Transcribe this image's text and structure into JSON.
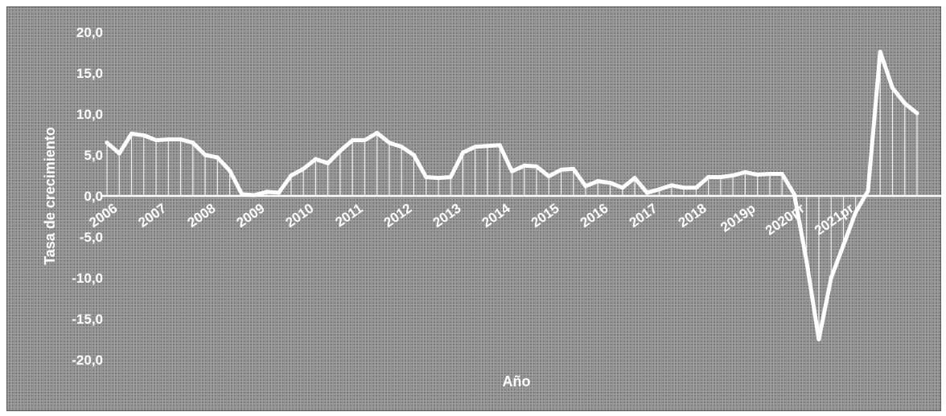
{
  "chart_data": {
    "type": "line",
    "title": "",
    "xlabel": "Año",
    "ylabel": "Tasa de crecimiento",
    "ylim": [
      -20,
      20
    ],
    "yticks": [
      "20,0",
      "15,0",
      "10,0",
      "5,0",
      "0,0",
      "-5,0",
      "-10,0",
      "-15,0",
      "-20,0"
    ],
    "ytick_values": [
      20,
      15,
      10,
      5,
      0,
      -5,
      -10,
      -15,
      -20
    ],
    "year_labels": [
      "2006",
      "2007",
      "2008",
      "2009",
      "2010",
      "2011",
      "2012",
      "2013",
      "2014",
      "2015",
      "2016",
      "2017",
      "2018",
      "2019p",
      "2020pr",
      "2021pr"
    ],
    "grid": false,
    "drop_lines": true,
    "line_color": "#ffffff",
    "series": [
      {
        "values": [
          6.5,
          5.2,
          7.6,
          7.4,
          6.8,
          6.9,
          6.9,
          6.5,
          5.0,
          4.7,
          3.1,
          0.2,
          0.1,
          0.5,
          0.4,
          2.5,
          3.3,
          4.5,
          4.0,
          5.5,
          6.8,
          6.8,
          7.7,
          6.5,
          6.0,
          5.0,
          2.3,
          2.2,
          2.3,
          5.3,
          6.0,
          6.1,
          6.2,
          3.0,
          3.7,
          3.6,
          2.4,
          3.2,
          3.3,
          1.2,
          1.8,
          1.6,
          1.0,
          2.2,
          0.4,
          0.8,
          1.3,
          1.0,
          1.0,
          2.3,
          2.3,
          2.5,
          2.9,
          2.6,
          2.7,
          2.7,
          0.2,
          -8.0,
          -17.5,
          -10.0,
          -6.0,
          -2.0,
          0.6,
          17.6,
          13.2,
          11.3,
          10.1
        ]
      }
    ]
  }
}
